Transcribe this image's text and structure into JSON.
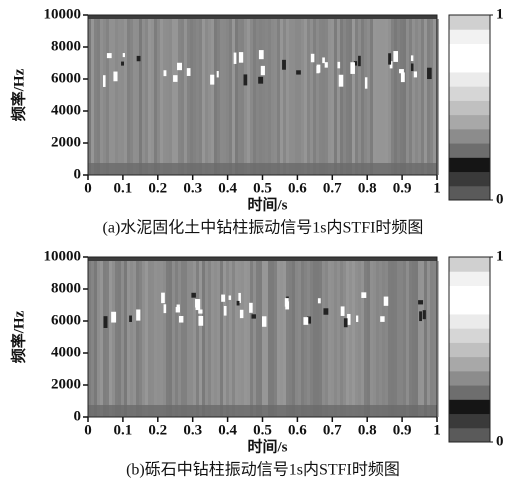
{
  "chart_data": [
    {
      "type": "heatmap",
      "caption": "(a)水泥固化土中钻柱振动信号1s内STFI时频图",
      "xlabel": "时间/s",
      "ylabel": "频率/Hz",
      "xlim": [
        0,
        1
      ],
      "xticks": [
        0,
        0.1,
        0.2,
        0.3,
        0.4,
        0.5,
        0.6,
        0.7,
        0.8,
        0.9,
        1
      ],
      "ylim": [
        0,
        10000
      ],
      "yticks": [
        0,
        2000,
        4000,
        6000,
        8000,
        10000
      ],
      "colorbar": {
        "lim": [
          0,
          1
        ],
        "ticks": [
          0,
          1
        ],
        "colors": [
          "#5a5a5a",
          "#3a3a3a",
          "#151515",
          "#6e6e6e",
          "#8c8c8c",
          "#a8a8a8",
          "#c0c0c0",
          "#d6d6d6",
          "#ebebeb",
          "#ffffff",
          "#ffffff",
          "#f2f2f2",
          "#d0d0d0"
        ]
      }
    },
    {
      "type": "heatmap",
      "caption": "(b)砾石中钻柱振动信号1s内STFI时频图",
      "xlabel": "时间/s",
      "ylabel": "频率/Hz",
      "xlim": [
        0,
        1
      ],
      "xticks": [
        0,
        0.1,
        0.2,
        0.3,
        0.4,
        0.5,
        0.6,
        0.7,
        0.8,
        0.9,
        1
      ],
      "ylim": [
        0,
        10000
      ],
      "yticks": [
        0,
        2000,
        4000,
        6000,
        8000,
        10000
      ],
      "colorbar": {
        "lim": [
          0,
          1
        ],
        "ticks": [
          0,
          1
        ],
        "colors": [
          "#5a5a5a",
          "#3a3a3a",
          "#151515",
          "#6e6e6e",
          "#8c8c8c",
          "#a8a8a8",
          "#c0c0c0",
          "#d6d6d6",
          "#ebebeb",
          "#ffffff",
          "#ffffff",
          "#f2f2f2",
          "#d0d0d0"
        ]
      }
    }
  ]
}
